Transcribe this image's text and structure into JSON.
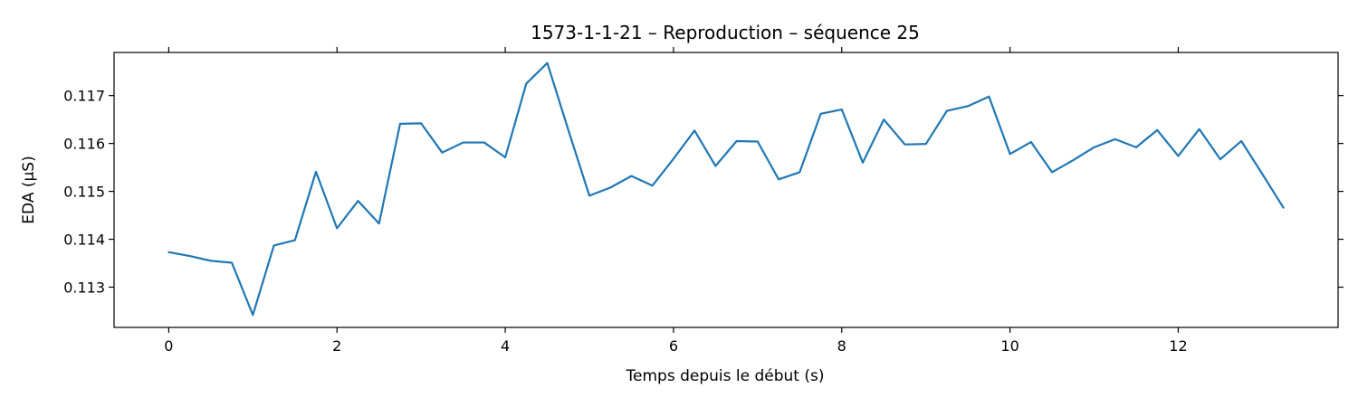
{
  "chart_data": {
    "type": "line",
    "title": "1573-1-1-21 – Reproduction – séquence 25",
    "xlabel": "Temps depuis le début (s)",
    "ylabel": "EDA (µS)",
    "xlim": [
      -0.65,
      13.9
    ],
    "ylim": [
      0.11216,
      0.1179
    ],
    "xticks": [
      0,
      2,
      4,
      6,
      8,
      10,
      12
    ],
    "yticks": [
      0.113,
      0.114,
      0.115,
      0.116,
      0.117
    ],
    "grid": false,
    "line_color": "#1f77b4",
    "series": [
      {
        "x": [
          0,
          0.25,
          0.5,
          0.75,
          1.0,
          1.25,
          1.5,
          1.75,
          2.0,
          2.25,
          2.5,
          2.75,
          3.0,
          3.25,
          3.5,
          3.75,
          4.0,
          4.25,
          4.5,
          4.75,
          5.0,
          5.25,
          5.5,
          5.75,
          6.0,
          6.25,
          6.5,
          6.75,
          7.0,
          7.25,
          7.5,
          7.75,
          8.0,
          8.25,
          8.5,
          8.75,
          9.0,
          9.25,
          9.5,
          9.75,
          10.0,
          10.25,
          10.5,
          10.75,
          11.0,
          11.25,
          11.5,
          11.75,
          12.0,
          12.25,
          12.5,
          12.75,
          13.0,
          13.25
        ],
        "values": [
          0.11373,
          0.11365,
          0.11355,
          0.11351,
          0.11242,
          0.11387,
          0.11398,
          0.11541,
          0.11423,
          0.1148,
          0.11433,
          0.11641,
          0.11642,
          0.11581,
          0.11602,
          0.11602,
          0.11571,
          0.11725,
          0.11768,
          0.11628,
          0.11491,
          0.11508,
          0.11532,
          0.11512,
          0.11568,
          0.11627,
          0.11553,
          0.11605,
          0.11604,
          0.11525,
          0.1154,
          0.11662,
          0.11671,
          0.1156,
          0.1165,
          0.11598,
          0.11599,
          0.11668,
          0.11678,
          0.11698,
          0.11578,
          0.11603,
          0.1154,
          0.11565,
          0.11592,
          0.11609,
          0.11592,
          0.11628,
          0.11574,
          0.1163,
          0.11567,
          0.11605,
          0.11536,
          0.11466
        ]
      }
    ]
  }
}
